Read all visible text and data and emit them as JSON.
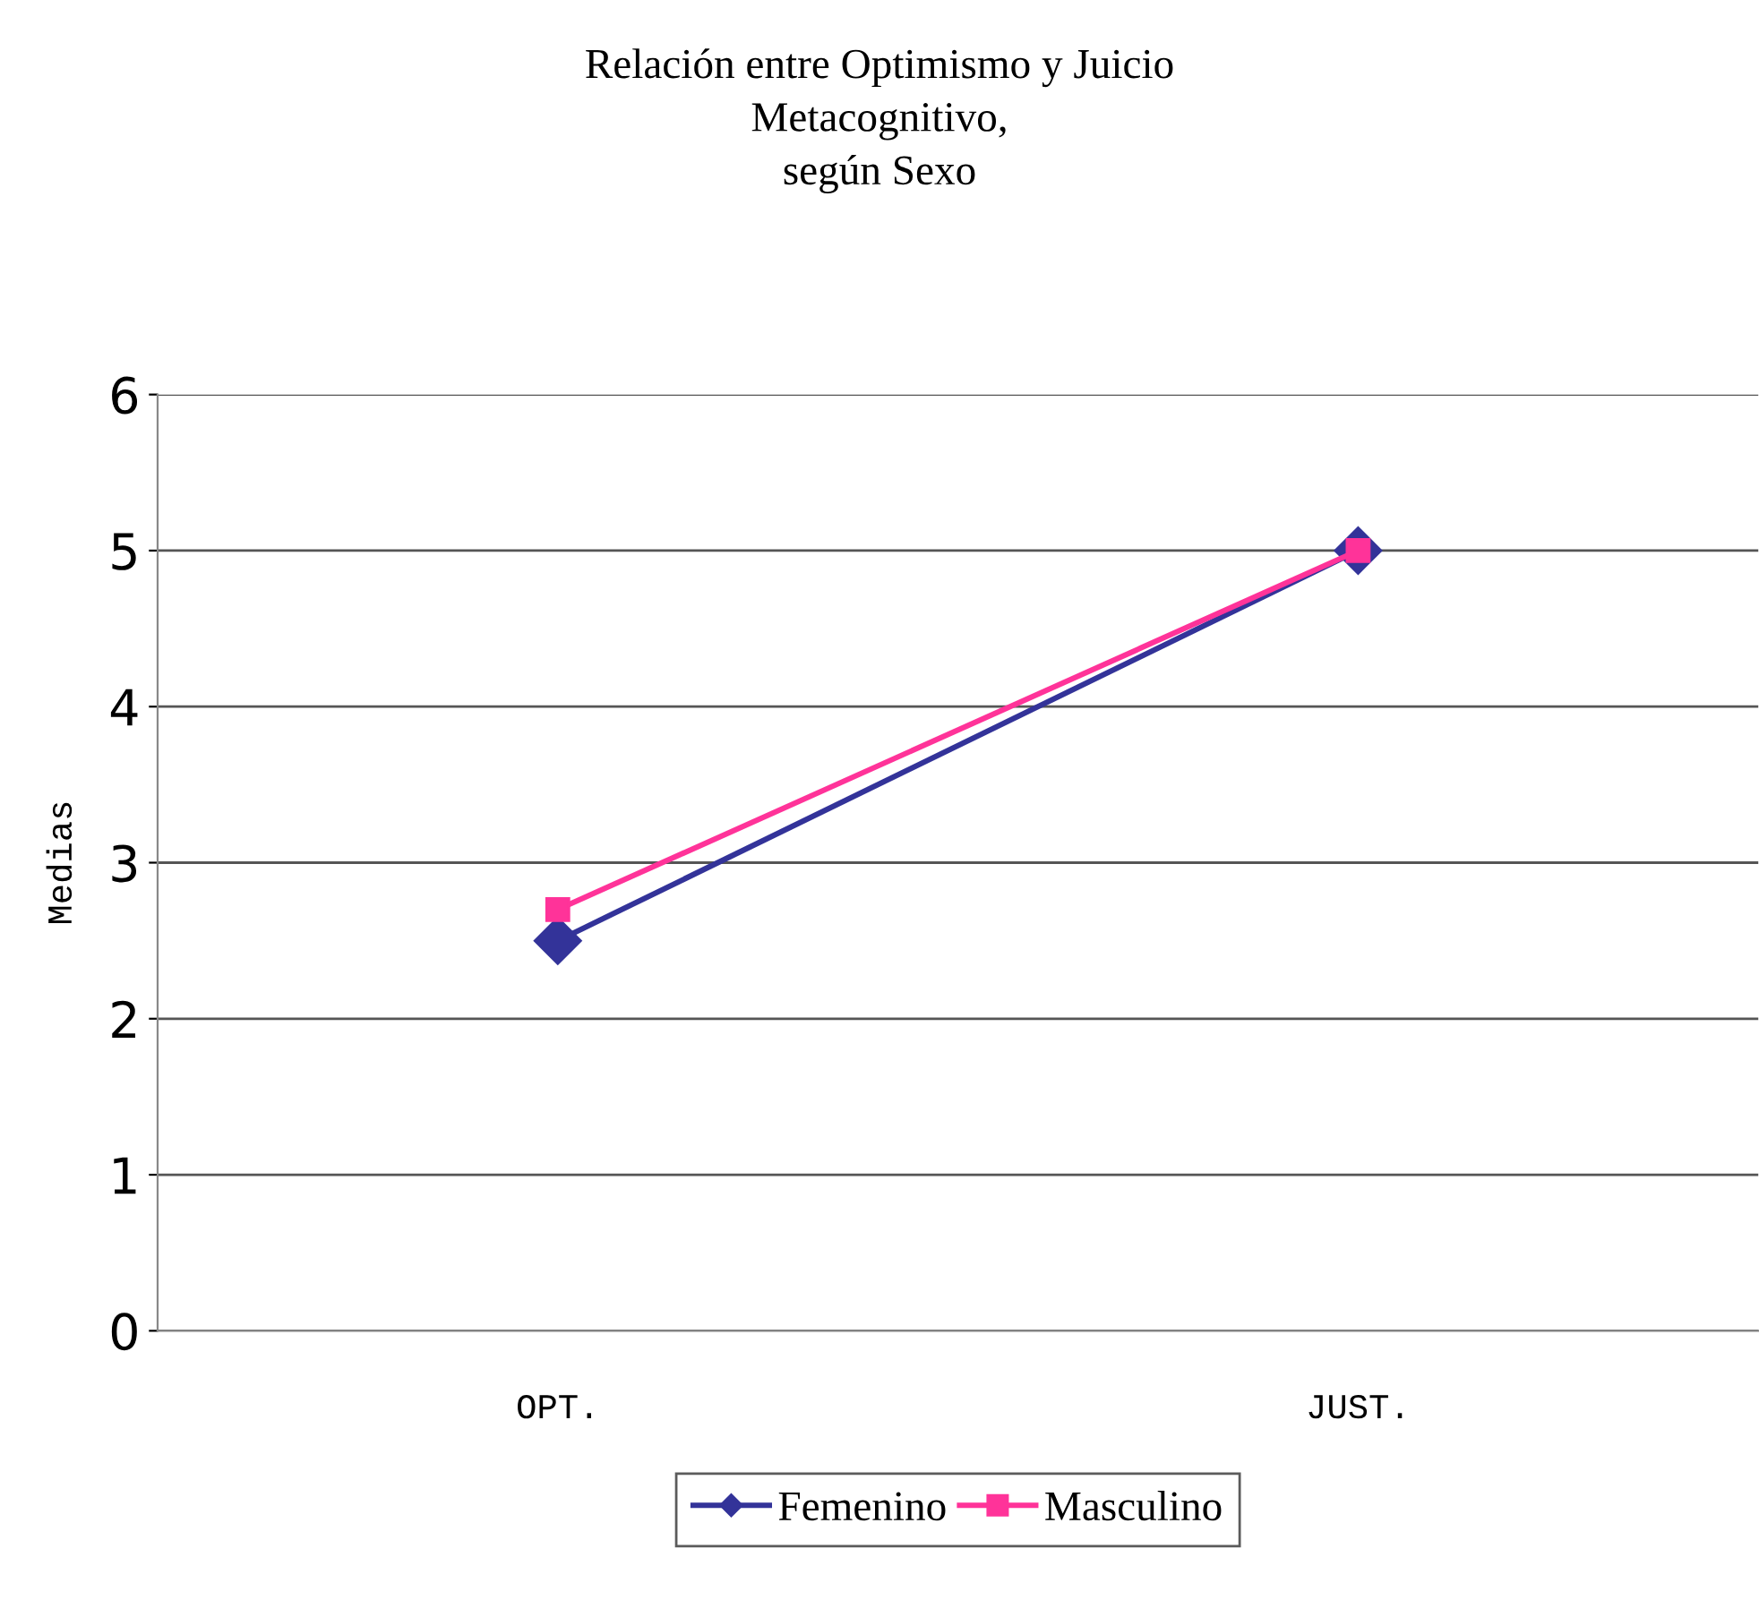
{
  "chart_data": {
    "type": "line",
    "title": "Relación entre Optimismo y Juicio\nMetacognitivo,\nsegún Sexo",
    "ylabel": "Medias",
    "categories": [
      "OPT.",
      "JUST."
    ],
    "series": [
      {
        "name": "Femenino",
        "color": "#333399",
        "values": [
          2.5,
          5.0
        ],
        "marker": "diamond"
      },
      {
        "name": "Masculino",
        "color": "#ff3399",
        "values": [
          2.7,
          5.0
        ],
        "marker": "square"
      }
    ],
    "ylim": [
      0,
      6
    ],
    "yticks": [
      0,
      1,
      2,
      3,
      4,
      5,
      6
    ],
    "grid": "y",
    "legend": "bottom",
    "line_style": "solid"
  }
}
